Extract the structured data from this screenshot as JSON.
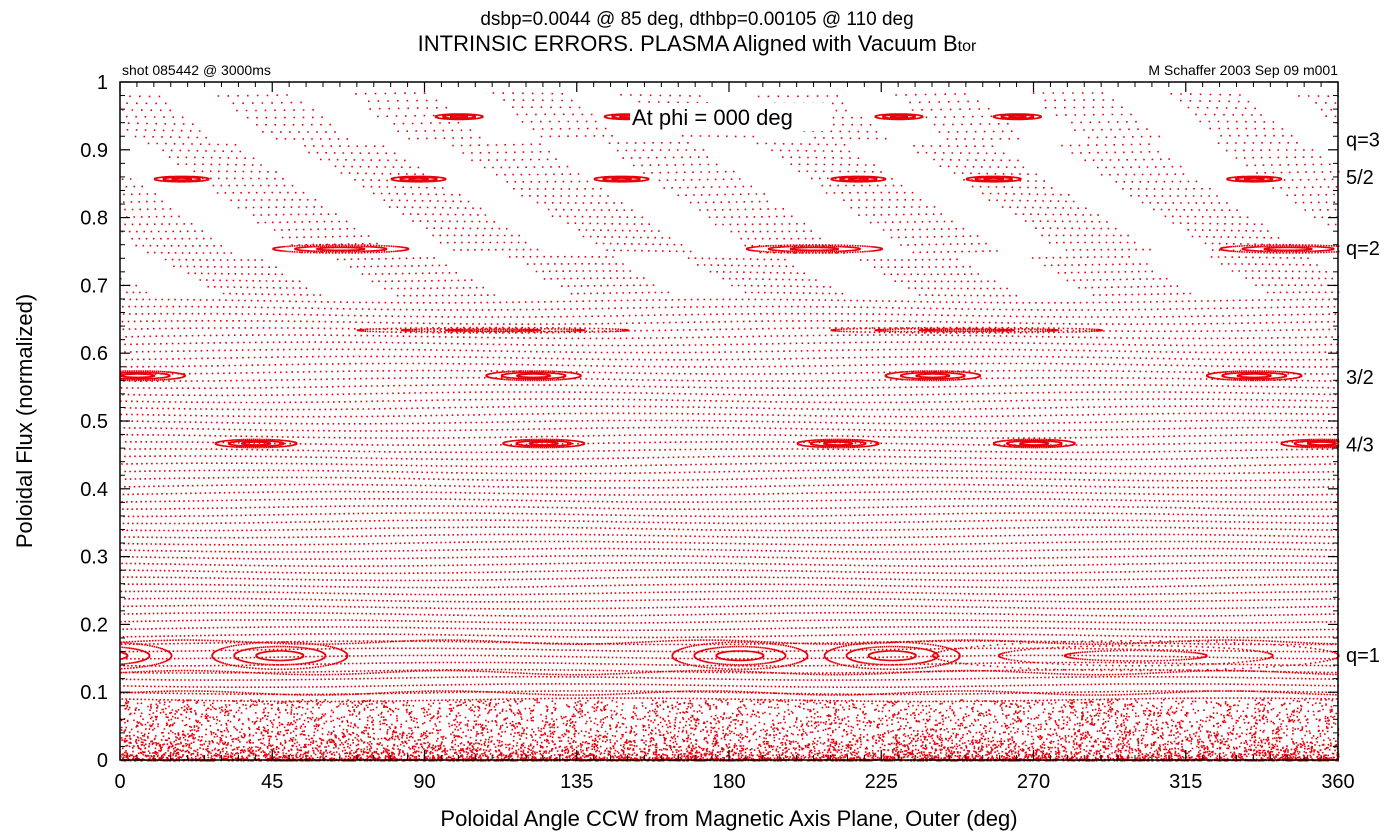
{
  "chart_data": {
    "type": "scatter",
    "title": "INTRINSIC ERRORS.  PLASMA Aligned with Vacuum B",
    "title_subscript": "tor",
    "subtitle": "dsbp=0.0044 @ 85 deg, dthbp=0.00105 @ 110 deg",
    "corner_left": "shot 085442 @ 3000ms",
    "corner_right": "M Schaffer 2003 Sep 09  m001",
    "annotation": "At phi = 000 deg",
    "xlabel": "Poloidal Angle CCW from Magnetic Axis Plane, Outer (deg)",
    "ylabel": "Poloidal Flux (normalized)",
    "xlim": [
      0,
      360
    ],
    "ylim": [
      0,
      1
    ],
    "x_ticks": [
      0,
      45,
      90,
      135,
      180,
      225,
      270,
      315,
      360
    ],
    "x_tick_labels": [
      "0",
      "45",
      "90",
      "135",
      "180",
      "225",
      "270",
      "315",
      "360"
    ],
    "y_ticks": [
      0,
      0.1,
      0.2,
      0.3,
      0.4,
      0.5,
      0.6,
      0.7,
      0.8,
      0.9,
      1
    ],
    "y_tick_labels": [
      "0",
      "0.1",
      "0.2",
      "0.3",
      "0.4",
      "0.5",
      "0.6",
      "0.7",
      "0.8",
      "0.9",
      "1"
    ],
    "grid": false,
    "marker_color": "#e8000b",
    "surface_labels": [
      {
        "text": "q=3",
        "psi": 0.915
      },
      {
        "text": "5/2",
        "psi": 0.86
      },
      {
        "text": "q=2",
        "psi": 0.755
      },
      {
        "text": "3/2",
        "psi": 0.565
      },
      {
        "text": "4/3",
        "psi": 0.465
      },
      {
        "text": "q=1",
        "psi": 0.155
      }
    ],
    "islands": [
      {
        "name": "q=1",
        "psi": 0.155,
        "half_width": 0.02,
        "o_points": [
          -5,
          47,
          183,
          228
        ],
        "half_length": 20
      },
      {
        "name": "q=1-big",
        "psi": 0.155,
        "half_width": 0.022,
        "o_points": [
          300
        ],
        "half_length": 60
      },
      {
        "name": "4/3",
        "psi": 0.468,
        "half_width": 0.006,
        "o_points": [
          40,
          125,
          212,
          270,
          355
        ],
        "half_length": 12
      },
      {
        "name": "3/2",
        "psi": 0.568,
        "half_width": 0.007,
        "o_points": [
          5,
          122,
          240,
          335
        ],
        "half_length": 14
      },
      {
        "name": "5/3",
        "psi": 0.635,
        "half_width": 0.004,
        "o_points": [
          110,
          250
        ],
        "half_length": 40
      },
      {
        "name": "2/1",
        "psi": 0.755,
        "half_width": 0.006,
        "o_points": [
          65,
          205,
          345
        ],
        "half_length": 20
      },
      {
        "name": "5/2",
        "psi": 0.858,
        "half_width": 0.004,
        "o_points": [
          18,
          88,
          148,
          218,
          258,
          335
        ],
        "half_length": 8
      },
      {
        "name": "3/1",
        "psi": 0.95,
        "half_width": 0.004,
        "o_points": [
          100,
          150,
          230,
          265
        ],
        "half_length": 7
      }
    ],
    "edge_bands_psi": [
      0.1,
      0.13,
      0.175
    ]
  }
}
